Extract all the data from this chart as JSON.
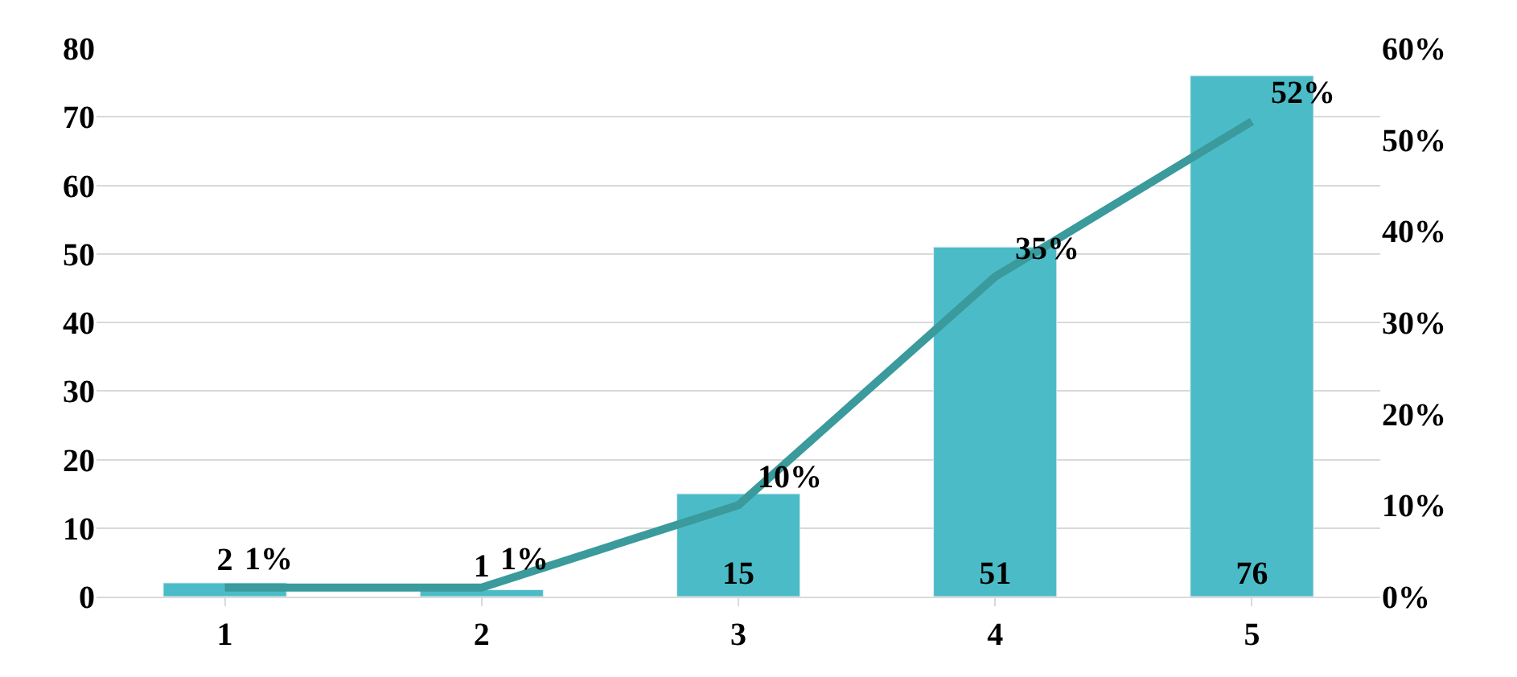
{
  "chart_data": {
    "type": "bar",
    "categories": [
      "1",
      "2",
      "3",
      "4",
      "5"
    ],
    "series": [
      {
        "color": "#4bbcc7",
        "values": [
          2,
          1,
          15,
          51,
          76
        ],
        "value_labels": [
          "2",
          "1",
          "15",
          "51",
          "76"
        ]
      },
      {
        "type": "line",
        "axis": "y2",
        "color": "#3a9a9c",
        "values": [
          1,
          1,
          10,
          35,
          52
        ],
        "value_labels": [
          "1%",
          "1%",
          "10%",
          "35%",
          "52%"
        ]
      }
    ],
    "ylim": [
      0,
      80
    ],
    "yticks": [
      0,
      10,
      20,
      30,
      40,
      50,
      60,
      70,
      80
    ],
    "y2lim": [
      0,
      60
    ],
    "y2ticks": [
      {
        "value": 0,
        "label": "0%"
      },
      {
        "value": 10,
        "label": "10%"
      },
      {
        "value": 20,
        "label": "20%"
      },
      {
        "value": 30,
        "label": "30%"
      },
      {
        "value": 40,
        "label": "40%"
      },
      {
        "value": 50,
        "label": "50%"
      },
      {
        "value": 60,
        "label": "60%"
      }
    ],
    "grid": "y",
    "legend": false,
    "marker": "none",
    "line_style": "solid"
  }
}
